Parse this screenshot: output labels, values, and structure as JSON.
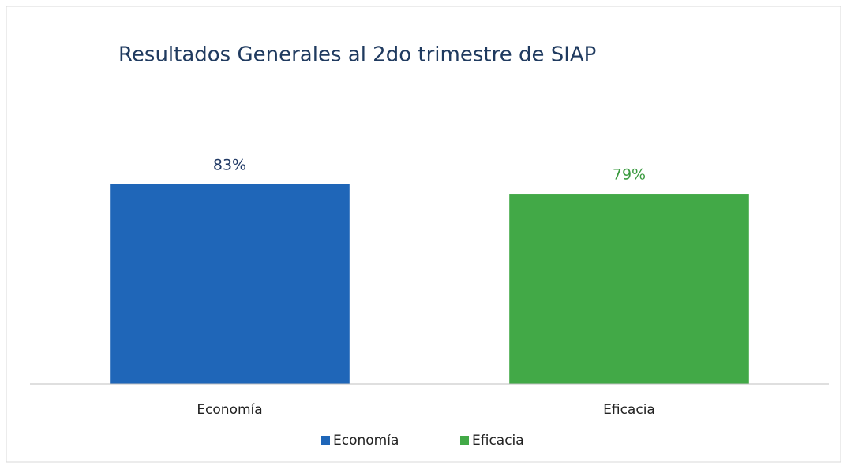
{
  "chart_data": {
    "type": "bar",
    "title": "Resultados Generales al 2do trimestre de SIAP",
    "categories": [
      "Economía",
      "Eficacia"
    ],
    "values": [
      83,
      79
    ],
    "value_labels": [
      "83%",
      "79%"
    ],
    "colors": [
      "#1f66b8",
      "#42a947"
    ],
    "label_colors": [
      "#1f3864",
      "#3a9a3f"
    ],
    "ylim": [
      0,
      100
    ],
    "legend": "bottom"
  }
}
